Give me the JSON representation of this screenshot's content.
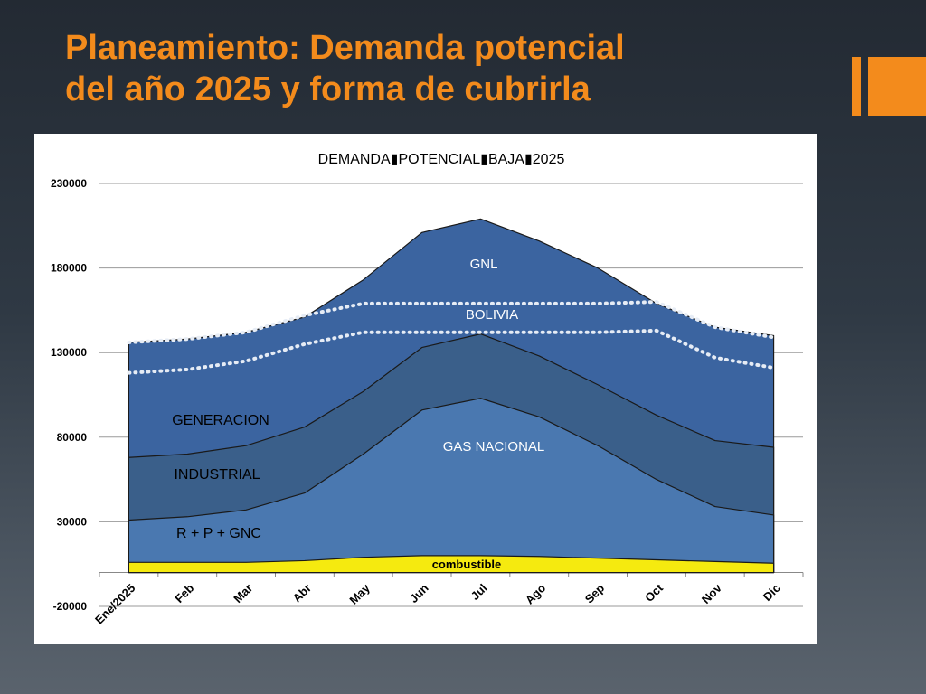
{
  "slide": {
    "title_line1": "Planeamiento: Demanda potencial",
    "title_line2": "del año 2025 y forma de cubrirla",
    "accent_color": "#f38b1c"
  },
  "chart_data": {
    "type": "area",
    "title": "DEMANDA▮POTENCIAL▮BAJA▮2025",
    "categories": [
      "Ene/2025",
      "Feb",
      "Mar",
      "Abr",
      "May",
      "Jun",
      "Jul",
      "Ago",
      "Sep",
      "Oct",
      "Nov",
      "Dic"
    ],
    "ylim": [
      -20000,
      230000
    ],
    "yticks": [
      230000,
      180000,
      130000,
      80000,
      30000,
      -20000
    ],
    "stacked_totals": {
      "combustible": [
        6000,
        6000,
        6000,
        7000,
        9000,
        10000,
        10000,
        9500,
        8500,
        7500,
        6500,
        5500
      ],
      "r_p_gnc": [
        31000,
        33000,
        37000,
        47000,
        70000,
        96000,
        103000,
        92000,
        75000,
        55000,
        39000,
        34000
      ],
      "industrial": [
        68000,
        70000,
        75000,
        86000,
        107000,
        133000,
        141000,
        128000,
        111000,
        93000,
        78000,
        74000
      ],
      "generacion_gas_nacional": [
        136000,
        138000,
        142000,
        151000,
        173000,
        201000,
        209000,
        196000,
        180000,
        159000,
        145000,
        140000
      ]
    },
    "series": [
      {
        "name": "combustible",
        "color": "#f5ea0f"
      },
      {
        "name": "R + P + GNC",
        "color": "#4a78b0"
      },
      {
        "name": "INDUSTRIAL",
        "color": "#3a5f8a"
      },
      {
        "name": "GENERACION / GAS NACIONAL / BOLIVIA / GNL",
        "color": "#3b64a0"
      }
    ],
    "dotted_lines": [
      {
        "name": "BOLIVIA upper",
        "values": [
          136000,
          138000,
          142000,
          152000,
          159000,
          159000,
          159000,
          159000,
          159000,
          160000,
          145000,
          139000
        ]
      },
      {
        "name": "BOLIVIA lower",
        "values": [
          118000,
          120000,
          125000,
          135000,
          142000,
          142000,
          142000,
          142000,
          142000,
          143000,
          127000,
          121000
        ]
      }
    ],
    "annotations": [
      "GNL",
      "BOLIVIA",
      "GENERACION",
      "GAS NACIONAL",
      "INDUSTRIAL",
      "R + P + GNC",
      "combustible"
    ]
  }
}
